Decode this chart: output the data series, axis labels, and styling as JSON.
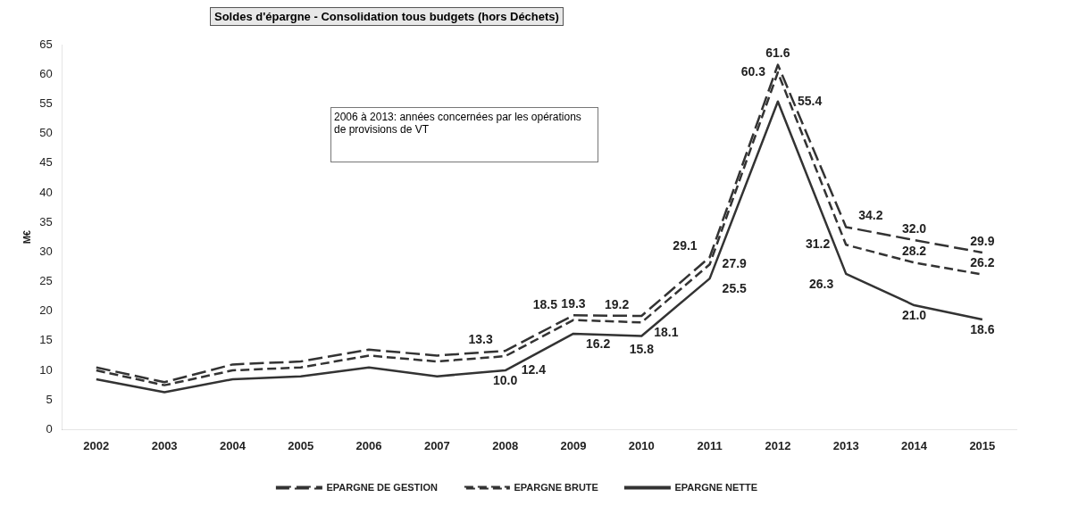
{
  "chart_data": {
    "type": "line",
    "title": "Soldes d'épargne - Consolidation tous budgets (hors Déchets)",
    "ylabel": "M€",
    "annotations": [
      "2006 à 2013: années concernées par les opérations de provisions de VT"
    ],
    "categories": [
      "2002",
      "2003",
      "2004",
      "2005",
      "2006",
      "2007",
      "2008",
      "2009",
      "2010",
      "2011",
      "2012",
      "2013",
      "2014",
      "2015"
    ],
    "ylim": [
      0,
      65
    ],
    "yticks": [
      0,
      5,
      10,
      15,
      20,
      25,
      30,
      35,
      40,
      45,
      50,
      55,
      60,
      65
    ],
    "grid": false,
    "legend": "bottom",
    "marker": "none",
    "series": [
      {
        "name": "EPARGNE DE GESTION",
        "color": "#333333",
        "line_style": "dashed",
        "values": [
          10.5,
          8,
          11,
          11.5,
          13.5,
          12.5,
          13.3,
          19.3,
          19.2,
          29.1,
          61.6,
          34.2,
          32.0,
          29.9
        ],
        "value_labels": [
          null,
          null,
          null,
          null,
          null,
          null,
          "13.3",
          "19.3",
          "19.2",
          "29.1",
          "61.6",
          "34.2",
          "32.0",
          "29.9"
        ]
      },
      {
        "name": "EPARGNE BRUTE",
        "color": "#333333",
        "line_style": "dashed",
        "values": [
          10,
          7.5,
          10,
          10.5,
          12.5,
          11.5,
          12.4,
          18.5,
          18.1,
          27.9,
          60.3,
          31.2,
          28.2,
          26.2
        ],
        "value_labels": [
          null,
          null,
          null,
          null,
          null,
          null,
          "12.4",
          "18.5",
          "18.1",
          "27.9",
          "60.3",
          "31.2",
          "28.2",
          "26.2"
        ]
      },
      {
        "name": "EPARGNE NETTE",
        "color": "#333333",
        "line_style": "solid",
        "values": [
          8.5,
          6.3,
          8.5,
          9,
          10.5,
          9,
          10.0,
          16.2,
          15.8,
          25.5,
          55.4,
          26.3,
          21.0,
          18.6
        ],
        "value_labels": [
          null,
          null,
          null,
          null,
          null,
          null,
          "10.0",
          "16.2",
          "15.8",
          "25.5",
          "55.4",
          "26.3",
          "21.0",
          "18.6"
        ]
      }
    ]
  }
}
